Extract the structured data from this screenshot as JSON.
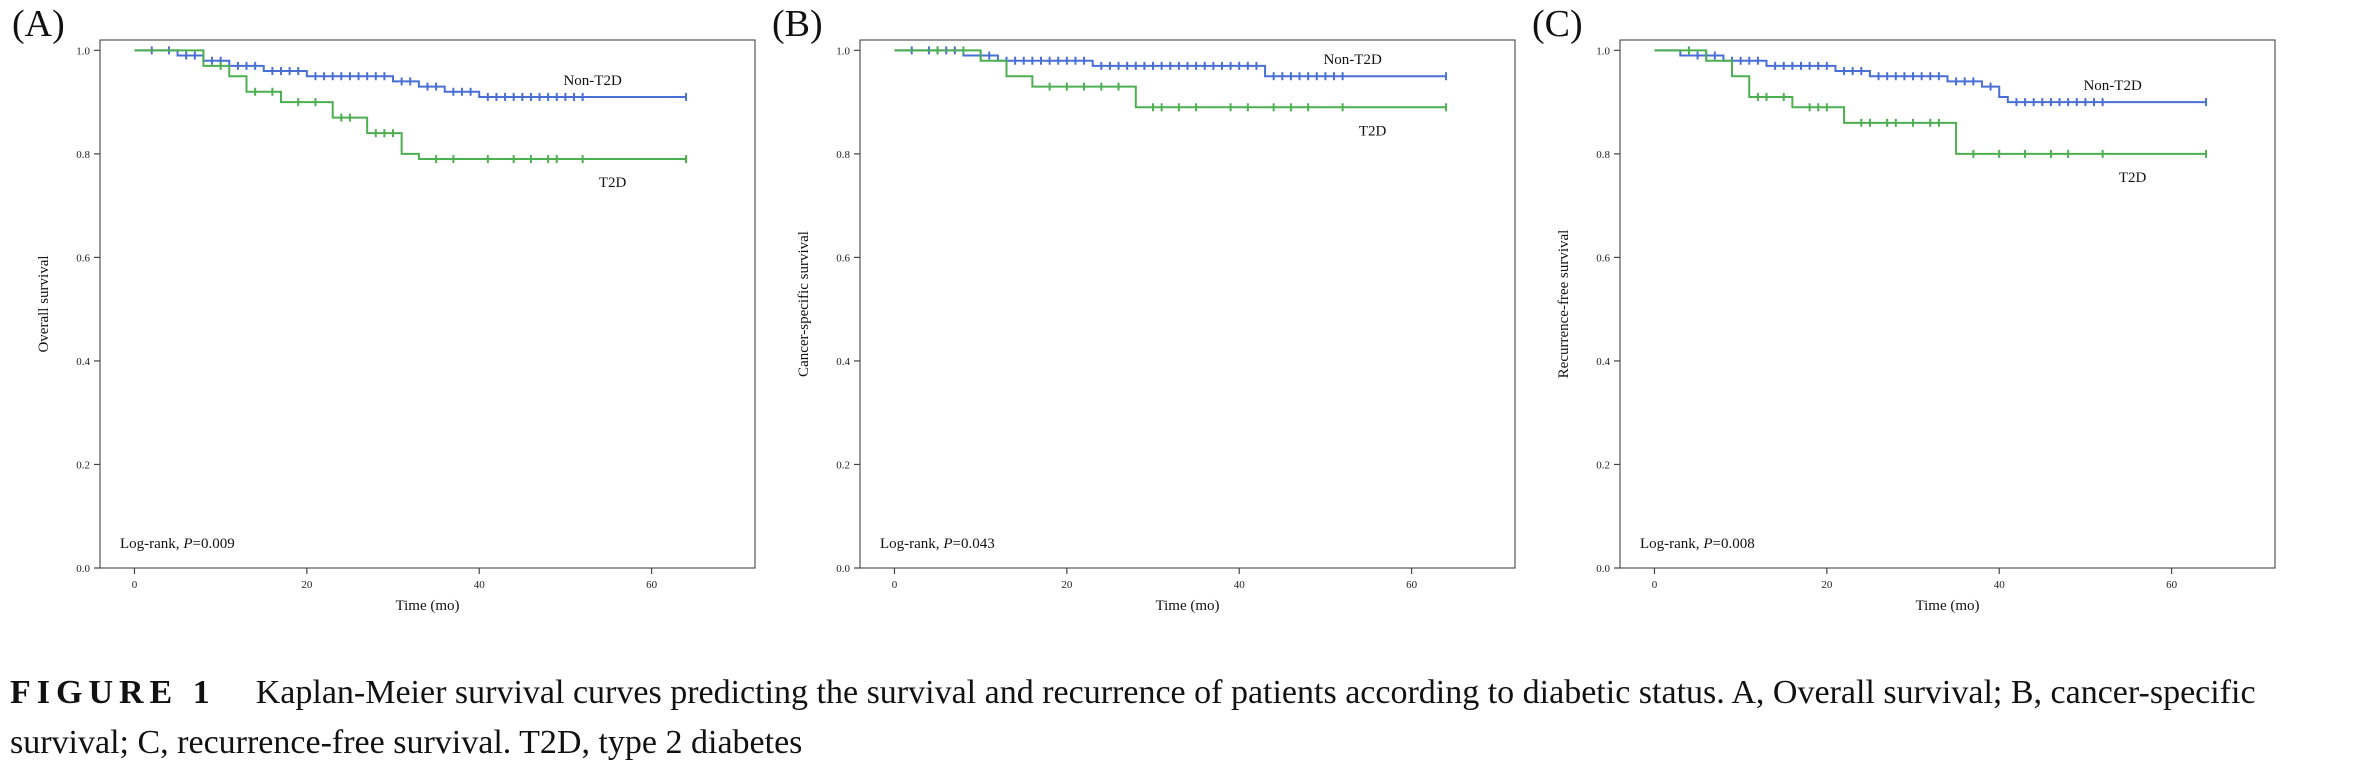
{
  "panels": [
    {
      "letter": "(A)",
      "ylabel": "Overall survival",
      "xlabel": "Time (mo)",
      "logrank_prefix": "Log-rank, ",
      "logrank_p": "P",
      "logrank_value": "=0.009"
    },
    {
      "letter": "(B)",
      "ylabel": "Cancer-specific survival",
      "xlabel": "Time (mo)",
      "logrank_prefix": "Log-rank, ",
      "logrank_p": "P",
      "logrank_value": "=0.043"
    },
    {
      "letter": "(C)",
      "ylabel": "Recurrence-free survival",
      "xlabel": "Time (mo)",
      "logrank_prefix": "Log-rank, ",
      "logrank_p": "P",
      "logrank_value": "=0.008"
    }
  ],
  "caption": {
    "label": "FIGURE 1",
    "text": "Kaplan-Meier survival curves predicting the survival and recurrence of patients according to diabetic status. A, Overall survival; B, cancer-specific survival; C, recurrence-free survival. T2D, type 2 diabetes"
  },
  "chart_data": [
    {
      "type": "line",
      "step": true,
      "xlabel": "Time (mo)",
      "ylabel": "Overall survival",
      "xlim": [
        -4,
        72
      ],
      "ylim": [
        0,
        1.02
      ],
      "xticks": [
        0,
        20,
        40,
        60
      ],
      "yticks": [
        0.0,
        0.2,
        0.4,
        0.6,
        0.8,
        1.0
      ],
      "annotation": "Log-rank, P=0.009",
      "colors": {
        "Non-T2D": "#4a6fd4",
        "T2D": "#4caf50"
      },
      "series": [
        {
          "name": "Non-T2D",
          "steps": [
            [
              0,
              1.0
            ],
            [
              5,
              0.99
            ],
            [
              8,
              0.98
            ],
            [
              11,
              0.97
            ],
            [
              15,
              0.96
            ],
            [
              20,
              0.95
            ],
            [
              30,
              0.94
            ],
            [
              33,
              0.93
            ],
            [
              36,
              0.92
            ],
            [
              40,
              0.91
            ],
            [
              64,
              0.91
            ]
          ],
          "censor": [
            2,
            4,
            6,
            7,
            9,
            10,
            12,
            13,
            14,
            16,
            17,
            18,
            19,
            21,
            22,
            23,
            24,
            25,
            26,
            27,
            28,
            29,
            31,
            32,
            34,
            35,
            37,
            38,
            39,
            41,
            42,
            43,
            44,
            45,
            46,
            47,
            48,
            49,
            50,
            51,
            52,
            64
          ]
        },
        {
          "name": "T2D",
          "steps": [
            [
              0,
              1.0
            ],
            [
              8,
              0.97
            ],
            [
              11,
              0.95
            ],
            [
              13,
              0.92
            ],
            [
              17,
              0.9
            ],
            [
              23,
              0.87
            ],
            [
              27,
              0.84
            ],
            [
              31,
              0.8
            ],
            [
              33,
              0.79
            ],
            [
              64,
              0.79
            ]
          ],
          "censor": [
            10,
            14,
            16,
            19,
            21,
            24,
            25,
            28,
            29,
            30,
            35,
            37,
            41,
            44,
            46,
            48,
            49,
            52,
            64
          ]
        }
      ]
    },
    {
      "type": "line",
      "step": true,
      "xlabel": "Time (mo)",
      "ylabel": "Cancer-specific survival",
      "xlim": [
        -4,
        72
      ],
      "ylim": [
        0,
        1.02
      ],
      "xticks": [
        0,
        20,
        40,
        60
      ],
      "yticks": [
        0.0,
        0.2,
        0.4,
        0.6,
        0.8,
        1.0
      ],
      "annotation": "Log-rank, P=0.043",
      "colors": {
        "Non-T2D": "#4a6fd4",
        "T2D": "#4caf50"
      },
      "series": [
        {
          "name": "Non-T2D",
          "steps": [
            [
              0,
              1.0
            ],
            [
              8,
              0.99
            ],
            [
              12,
              0.98
            ],
            [
              23,
              0.97
            ],
            [
              43,
              0.95
            ],
            [
              64,
              0.95
            ]
          ],
          "censor": [
            2,
            4,
            5,
            6,
            7,
            10,
            11,
            13,
            14,
            15,
            16,
            17,
            18,
            19,
            20,
            21,
            22,
            24,
            25,
            26,
            27,
            28,
            29,
            30,
            31,
            32,
            33,
            34,
            35,
            36,
            37,
            38,
            39,
            40,
            41,
            42,
            44,
            45,
            46,
            47,
            48,
            49,
            50,
            51,
            52,
            64
          ]
        },
        {
          "name": "T2D",
          "steps": [
            [
              0,
              1.0
            ],
            [
              10,
              0.98
            ],
            [
              13,
              0.95
            ],
            [
              16,
              0.93
            ],
            [
              28,
              0.89
            ],
            [
              64,
              0.89
            ]
          ],
          "censor": [
            5,
            8,
            18,
            20,
            22,
            24,
            26,
            30,
            31,
            33,
            35,
            39,
            41,
            44,
            46,
            48,
            52,
            64
          ]
        }
      ]
    },
    {
      "type": "line",
      "step": true,
      "xlabel": "Time (mo)",
      "ylabel": "Recurrence-free survival",
      "xlim": [
        -4,
        72
      ],
      "ylim": [
        0,
        1.02
      ],
      "xticks": [
        0,
        20,
        40,
        60
      ],
      "yticks": [
        0.0,
        0.2,
        0.4,
        0.6,
        0.8,
        1.0
      ],
      "annotation": "Log-rank, P=0.008",
      "colors": {
        "Non-T2D": "#4a6fd4",
        "T2D": "#4caf50"
      },
      "series": [
        {
          "name": "Non-T2D",
          "steps": [
            [
              0,
              1.0
            ],
            [
              3,
              0.99
            ],
            [
              8,
              0.98
            ],
            [
              13,
              0.97
            ],
            [
              21,
              0.96
            ],
            [
              25,
              0.95
            ],
            [
              34,
              0.94
            ],
            [
              38,
              0.93
            ],
            [
              40,
              0.91
            ],
            [
              41,
              0.9
            ],
            [
              64,
              0.9
            ]
          ],
          "censor": [
            5,
            6,
            7,
            9,
            10,
            11,
            12,
            14,
            15,
            16,
            17,
            18,
            19,
            20,
            22,
            23,
            24,
            26,
            27,
            28,
            29,
            30,
            31,
            32,
            33,
            35,
            36,
            37,
            39,
            42,
            43,
            44,
            45,
            46,
            47,
            48,
            49,
            50,
            51,
            52,
            64
          ]
        },
        {
          "name": "T2D",
          "steps": [
            [
              0,
              1.0
            ],
            [
              6,
              0.98
            ],
            [
              9,
              0.95
            ],
            [
              11,
              0.91
            ],
            [
              16,
              0.89
            ],
            [
              22,
              0.86
            ],
            [
              35,
              0.8
            ],
            [
              64,
              0.8
            ]
          ],
          "censor": [
            4,
            12,
            13,
            15,
            18,
            19,
            20,
            24,
            25,
            27,
            28,
            30,
            32,
            33,
            37,
            40,
            43,
            46,
            48,
            52,
            64
          ]
        }
      ]
    }
  ]
}
